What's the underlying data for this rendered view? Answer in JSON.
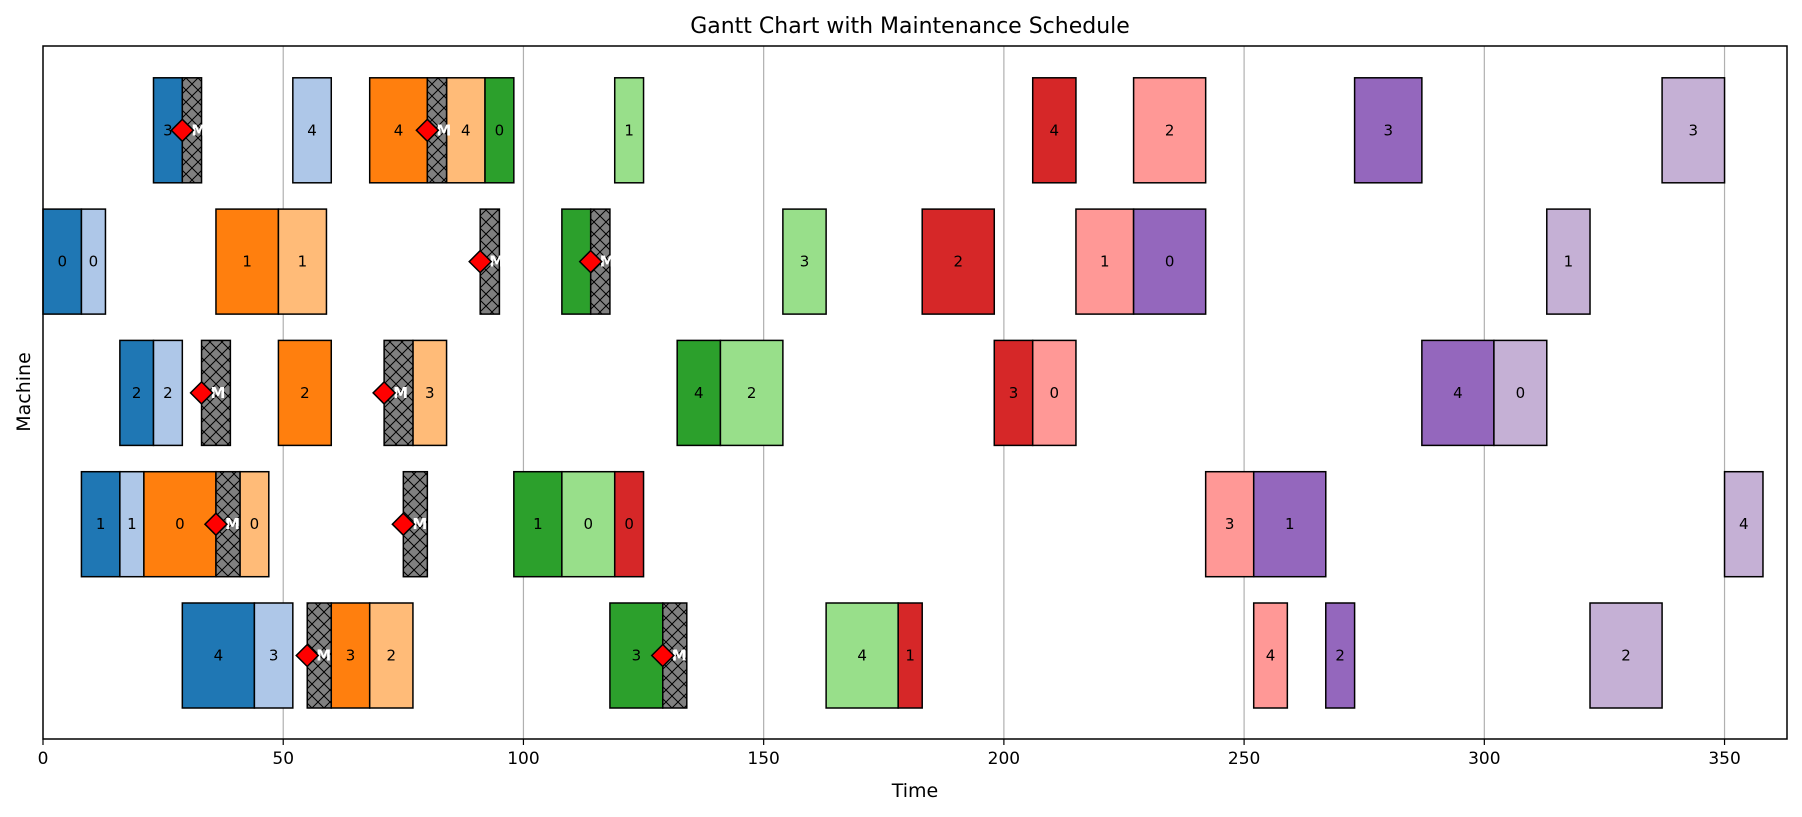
{
  "chart_data": {
    "type": "gantt",
    "title": "Gantt Chart with Maintenance Schedule",
    "xlabel": "Time",
    "ylabel": "Machine",
    "xlim": [
      0,
      363
    ],
    "xticks": [
      0,
      50,
      100,
      150,
      200,
      250,
      300,
      350
    ],
    "grid": "vertical",
    "rows": 5,
    "job_colors": [
      "#1f77b4",
      "#aec7e8",
      "#ff7f0e",
      "#ffbb78",
      "#2ca02c",
      "#98df8a",
      "#d62728",
      "#ff9896",
      "#9467bd",
      "#c5b0d5"
    ],
    "maintenance_color": "#808080",
    "maintenance_marker_color": "#ff0000",
    "maintenance_label": "M",
    "tasks": [
      {
        "row": 0,
        "start": 23,
        "end": 29,
        "job": 0,
        "label": "3"
      },
      {
        "row": 0,
        "start": 52,
        "end": 60,
        "job": 1,
        "label": "4"
      },
      {
        "row": 0,
        "start": 68,
        "end": 80,
        "job": 2,
        "label": "4"
      },
      {
        "row": 0,
        "start": 84,
        "end": 92,
        "job": 3,
        "label": "4"
      },
      {
        "row": 0,
        "start": 92,
        "end": 98,
        "job": 4,
        "label": "0"
      },
      {
        "row": 0,
        "start": 119,
        "end": 125,
        "job": 5,
        "label": "1"
      },
      {
        "row": 0,
        "start": 206,
        "end": 215,
        "job": 6,
        "label": "4"
      },
      {
        "row": 0,
        "start": 227,
        "end": 242,
        "job": 7,
        "label": "2"
      },
      {
        "row": 0,
        "start": 273,
        "end": 287,
        "job": 8,
        "label": "3"
      },
      {
        "row": 0,
        "start": 337,
        "end": 350,
        "job": 9,
        "label": "3"
      },
      {
        "row": 1,
        "start": 0,
        "end": 8,
        "job": 0,
        "label": "0"
      },
      {
        "row": 1,
        "start": 8,
        "end": 13,
        "job": 1,
        "label": "0"
      },
      {
        "row": 1,
        "start": 36,
        "end": 49,
        "job": 2,
        "label": "1"
      },
      {
        "row": 1,
        "start": 49,
        "end": 59,
        "job": 3,
        "label": "1"
      },
      {
        "row": 1,
        "start": 108,
        "end": 114,
        "job": 4,
        "label": ""
      },
      {
        "row": 1,
        "start": 154,
        "end": 163,
        "job": 5,
        "label": "3"
      },
      {
        "row": 1,
        "start": 183,
        "end": 198,
        "job": 6,
        "label": "2"
      },
      {
        "row": 1,
        "start": 215,
        "end": 227,
        "job": 7,
        "label": "1"
      },
      {
        "row": 1,
        "start": 227,
        "end": 242,
        "job": 8,
        "label": "0"
      },
      {
        "row": 1,
        "start": 313,
        "end": 322,
        "job": 9,
        "label": "1"
      },
      {
        "row": 2,
        "start": 16,
        "end": 23,
        "job": 0,
        "label": "2"
      },
      {
        "row": 2,
        "start": 23,
        "end": 29,
        "job": 1,
        "label": "2"
      },
      {
        "row": 2,
        "start": 49,
        "end": 60,
        "job": 2,
        "label": "2"
      },
      {
        "row": 2,
        "start": 77,
        "end": 84,
        "job": 3,
        "label": "3"
      },
      {
        "row": 2,
        "start": 132,
        "end": 141,
        "job": 4,
        "label": "4"
      },
      {
        "row": 2,
        "start": 141,
        "end": 154,
        "job": 5,
        "label": "2"
      },
      {
        "row": 2,
        "start": 198,
        "end": 206,
        "job": 6,
        "label": "3"
      },
      {
        "row": 2,
        "start": 206,
        "end": 215,
        "job": 7,
        "label": "0"
      },
      {
        "row": 2,
        "start": 287,
        "end": 302,
        "job": 8,
        "label": "4"
      },
      {
        "row": 2,
        "start": 302,
        "end": 313,
        "job": 9,
        "label": "0"
      },
      {
        "row": 3,
        "start": 8,
        "end": 16,
        "job": 0,
        "label": "1"
      },
      {
        "row": 3,
        "start": 16,
        "end": 21,
        "job": 1,
        "label": "1"
      },
      {
        "row": 3,
        "start": 21,
        "end": 36,
        "job": 2,
        "label": "0"
      },
      {
        "row": 3,
        "start": 41,
        "end": 47,
        "job": 3,
        "label": "0"
      },
      {
        "row": 3,
        "start": 98,
        "end": 108,
        "job": 4,
        "label": "1"
      },
      {
        "row": 3,
        "start": 108,
        "end": 119,
        "job": 5,
        "label": "0"
      },
      {
        "row": 3,
        "start": 119,
        "end": 125,
        "job": 6,
        "label": "0"
      },
      {
        "row": 3,
        "start": 242,
        "end": 252,
        "job": 7,
        "label": "3"
      },
      {
        "row": 3,
        "start": 252,
        "end": 267,
        "job": 8,
        "label": "1"
      },
      {
        "row": 3,
        "start": 350,
        "end": 358,
        "job": 9,
        "label": "4"
      },
      {
        "row": 4,
        "start": 29,
        "end": 44,
        "job": 0,
        "label": "4"
      },
      {
        "row": 4,
        "start": 44,
        "end": 52,
        "job": 1,
        "label": "3"
      },
      {
        "row": 4,
        "start": 60,
        "end": 68,
        "job": 2,
        "label": "3"
      },
      {
        "row": 4,
        "start": 68,
        "end": 77,
        "job": 3,
        "label": "2"
      },
      {
        "row": 4,
        "start": 118,
        "end": 129,
        "job": 4,
        "label": "3"
      },
      {
        "row": 4,
        "start": 163,
        "end": 178,
        "job": 5,
        "label": "4"
      },
      {
        "row": 4,
        "start": 178,
        "end": 183,
        "job": 6,
        "label": "1"
      },
      {
        "row": 4,
        "start": 252,
        "end": 259,
        "job": 7,
        "label": "4"
      },
      {
        "row": 4,
        "start": 267,
        "end": 273,
        "job": 8,
        "label": "2"
      },
      {
        "row": 4,
        "start": 322,
        "end": 337,
        "job": 9,
        "label": "2"
      }
    ],
    "maintenance": [
      {
        "row": 0,
        "start": 29,
        "end": 33
      },
      {
        "row": 0,
        "start": 80,
        "end": 84
      },
      {
        "row": 1,
        "start": 91,
        "end": 95
      },
      {
        "row": 1,
        "start": 114,
        "end": 118
      },
      {
        "row": 2,
        "start": 33,
        "end": 39
      },
      {
        "row": 2,
        "start": 71,
        "end": 77
      },
      {
        "row": 3,
        "start": 36,
        "end": 41
      },
      {
        "row": 3,
        "start": 75,
        "end": 80
      },
      {
        "row": 4,
        "start": 55,
        "end": 60
      },
      {
        "row": 4,
        "start": 129,
        "end": 134
      }
    ]
  }
}
